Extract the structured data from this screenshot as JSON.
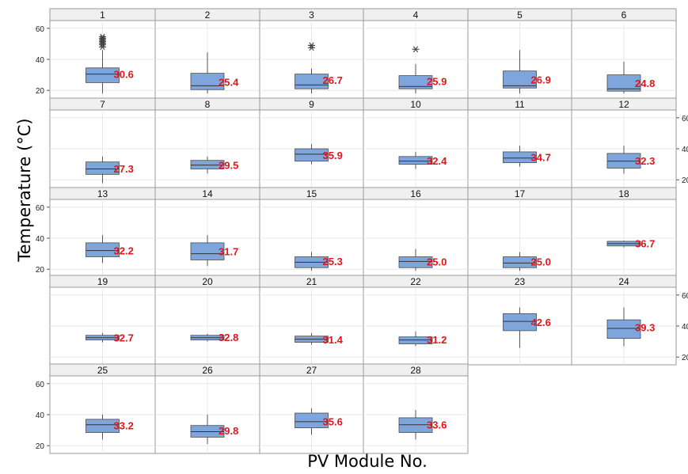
{
  "chart_data": {
    "type": "boxplot",
    "xlabel": "PV Module No.",
    "ylabel": "Temperature (°C)",
    "ylim": [
      15,
      65
    ],
    "yticks": [
      20,
      40,
      60
    ],
    "grid": true,
    "layout": {
      "columns": 6,
      "rows": 5
    },
    "panels": [
      {
        "name": "1",
        "min": 18,
        "q1": 25,
        "median": 30.5,
        "q3": 34.5,
        "max": 46,
        "mean": "30.6",
        "outliers": [
          48,
          49.5,
          50.5,
          51.5,
          52.5,
          53.5,
          54.5
        ]
      },
      {
        "name": "2",
        "min": 18,
        "q1": 20.5,
        "median": 23,
        "q3": 31,
        "max": 44.5,
        "mean": "25.4",
        "outliers": []
      },
      {
        "name": "3",
        "min": 18,
        "q1": 21,
        "median": 23.5,
        "q3": 30.5,
        "max": 34,
        "mean": "26.7",
        "outliers": [
          47.5,
          49
        ]
      },
      {
        "name": "4",
        "min": 18,
        "q1": 21,
        "median": 22.5,
        "q3": 29.5,
        "max": 37,
        "mean": "25.9",
        "outliers": [
          46.5
        ]
      },
      {
        "name": "5",
        "min": 18,
        "q1": 21.5,
        "median": 23,
        "q3": 32.5,
        "max": 46,
        "mean": "26.9",
        "outliers": []
      },
      {
        "name": "6",
        "min": 18,
        "q1": 19.5,
        "median": 21,
        "q3": 30,
        "max": 38.5,
        "mean": "24.8",
        "outliers": []
      },
      {
        "name": "7",
        "min": 18,
        "q1": 23.5,
        "median": 27,
        "q3": 31.5,
        "max": 35,
        "mean": "27.3",
        "outliers": []
      },
      {
        "name": "8",
        "min": 24,
        "q1": 27,
        "median": 29.5,
        "q3": 32.5,
        "max": 35,
        "mean": "29.5",
        "outliers": []
      },
      {
        "name": "9",
        "min": 30,
        "q1": 32,
        "median": 36.5,
        "q3": 40,
        "max": 43,
        "mean": "35.9",
        "outliers": []
      },
      {
        "name": "10",
        "min": 27,
        "q1": 30,
        "median": 32,
        "q3": 35,
        "max": 38,
        "mean": "32.4",
        "outliers": []
      },
      {
        "name": "11",
        "min": 28.5,
        "q1": 31,
        "median": 34,
        "q3": 38,
        "max": 42,
        "mean": "34.7",
        "outliers": []
      },
      {
        "name": "12",
        "min": 24,
        "q1": 27.5,
        "median": 32,
        "q3": 37,
        "max": 42,
        "mean": "32.3",
        "outliers": []
      },
      {
        "name": "13",
        "min": 24,
        "q1": 28,
        "median": 32,
        "q3": 37,
        "max": 42,
        "mean": "32.2",
        "outliers": []
      },
      {
        "name": "14",
        "min": 22,
        "q1": 26,
        "median": 30,
        "q3": 37,
        "max": 42,
        "mean": "31.7",
        "outliers": []
      },
      {
        "name": "15",
        "min": 19,
        "q1": 21,
        "median": 24.5,
        "q3": 28,
        "max": 31,
        "mean": "25.3",
        "outliers": []
      },
      {
        "name": "16",
        "min": 19,
        "q1": 21,
        "median": 25,
        "q3": 28,
        "max": 33,
        "mean": "25.0",
        "outliers": []
      },
      {
        "name": "17",
        "min": 19,
        "q1": 21,
        "median": 24,
        "q3": 28,
        "max": 31,
        "mean": "25.0",
        "outliers": []
      },
      {
        "name": "18",
        "min": 34,
        "q1": 35,
        "median": 36.5,
        "q3": 38,
        "max": 38.5,
        "mean": "36.7",
        "outliers": []
      },
      {
        "name": "19",
        "min": 29.5,
        "q1": 31,
        "median": 32.5,
        "q3": 34,
        "max": 35.5,
        "mean": "32.7",
        "outliers": []
      },
      {
        "name": "20",
        "min": 30,
        "q1": 31,
        "median": 32.5,
        "q3": 34,
        "max": 35,
        "mean": "32.8",
        "outliers": []
      },
      {
        "name": "21",
        "min": 28,
        "q1": 29.5,
        "median": 31.5,
        "q3": 33.5,
        "max": 35.5,
        "mean": "31.4",
        "outliers": []
      },
      {
        "name": "22",
        "min": 27,
        "q1": 28.5,
        "median": 31,
        "q3": 33,
        "max": 36.5,
        "mean": "31.2",
        "outliers": []
      },
      {
        "name": "23",
        "min": 26,
        "q1": 37,
        "median": 43,
        "q3": 48,
        "max": 52,
        "mean": "42.6",
        "outliers": []
      },
      {
        "name": "24",
        "min": 27,
        "q1": 32,
        "median": 38.5,
        "q3": 44,
        "max": 52,
        "mean": "39.3",
        "outliers": []
      },
      {
        "name": "25",
        "min": 24,
        "q1": 28.5,
        "median": 33.5,
        "q3": 37,
        "max": 40,
        "mean": "33.2",
        "outliers": []
      },
      {
        "name": "26",
        "min": 21,
        "q1": 25.5,
        "median": 29,
        "q3": 33,
        "max": 40,
        "mean": "29.8",
        "outliers": []
      },
      {
        "name": "27",
        "min": 27,
        "q1": 31.5,
        "median": 35.5,
        "q3": 41,
        "max": 44,
        "mean": "35.6",
        "outliers": []
      },
      {
        "name": "28",
        "min": 24,
        "q1": 28.5,
        "median": 33.5,
        "q3": 38,
        "max": 43,
        "mean": "33.6",
        "outliers": []
      }
    ]
  },
  "colors": {
    "box_fill": "#7ea6dc",
    "mean_label": "#e4141b",
    "panel_header": "#f0f0f0",
    "panel_border": "#9a9a9a"
  }
}
